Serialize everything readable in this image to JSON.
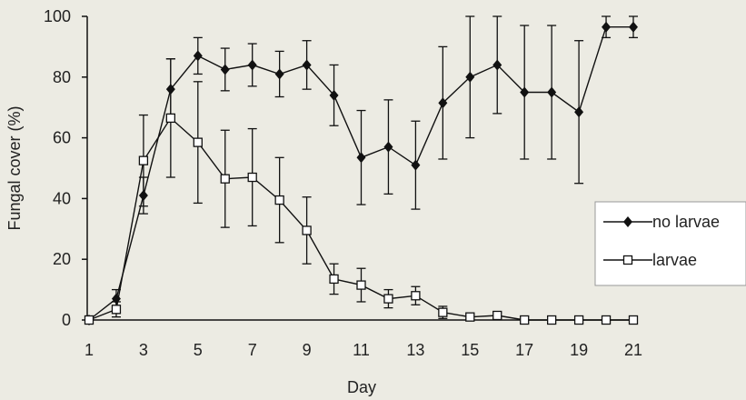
{
  "chart_data": {
    "type": "line",
    "xlabel": "Day",
    "ylabel": "Fungal cover (%)",
    "xlim": [
      1,
      21
    ],
    "ylim": [
      0,
      100
    ],
    "x_ticks": [
      1,
      3,
      5,
      7,
      9,
      11,
      13,
      15,
      17,
      19,
      21
    ],
    "y_ticks": [
      0,
      20,
      40,
      60,
      80,
      100
    ],
    "grid": false,
    "legend_position": "right",
    "series": [
      {
        "name": "no larvae",
        "marker": "filled-diamond",
        "color": "#111111",
        "points": [
          {
            "x": 1,
            "y": 0,
            "err": 0
          },
          {
            "x": 2,
            "y": 7,
            "err": 3
          },
          {
            "x": 3,
            "y": 41,
            "err": 6
          },
          {
            "x": 4,
            "y": 76,
            "err": 10
          },
          {
            "x": 5,
            "y": 87,
            "err": 6
          },
          {
            "x": 6,
            "y": 82.5,
            "err": 7
          },
          {
            "x": 7,
            "y": 84,
            "err": 7
          },
          {
            "x": 8,
            "y": 81,
            "err": 7.5
          },
          {
            "x": 9,
            "y": 84,
            "err": 8
          },
          {
            "x": 10,
            "y": 74,
            "err": 10
          },
          {
            "x": 11,
            "y": 53.5,
            "err": 15.5
          },
          {
            "x": 12,
            "y": 57,
            "err": 15.5
          },
          {
            "x": 13,
            "y": 51,
            "err": 14.5
          },
          {
            "x": 14,
            "y": 71.5,
            "err": 18.5
          },
          {
            "x": 15,
            "y": 80,
            "err": 20
          },
          {
            "x": 16,
            "y": 84,
            "err": 16
          },
          {
            "x": 17,
            "y": 75,
            "err": 22
          },
          {
            "x": 18,
            "y": 75,
            "err": 22
          },
          {
            "x": 19,
            "y": 68.5,
            "err": 23.5
          },
          {
            "x": 20,
            "y": 96.5,
            "err": 3.5
          },
          {
            "x": 21,
            "y": 96.5,
            "err": 3.5
          }
        ]
      },
      {
        "name": "larvae",
        "marker": "open-square",
        "color": "#111111",
        "points": [
          {
            "x": 1,
            "y": 0,
            "err": 0
          },
          {
            "x": 2,
            "y": 3.5,
            "err": 2.5
          },
          {
            "x": 3,
            "y": 52.5,
            "err": 15
          },
          {
            "x": 4,
            "y": 66.5,
            "err": 19.5
          },
          {
            "x": 5,
            "y": 58.5,
            "err": 20
          },
          {
            "x": 6,
            "y": 46.5,
            "err": 16
          },
          {
            "x": 7,
            "y": 47,
            "err": 16
          },
          {
            "x": 8,
            "y": 39.5,
            "err": 14
          },
          {
            "x": 9,
            "y": 29.5,
            "err": 11
          },
          {
            "x": 10,
            "y": 13.5,
            "err": 5
          },
          {
            "x": 11,
            "y": 11.5,
            "err": 5.5
          },
          {
            "x": 12,
            "y": 7,
            "err": 3
          },
          {
            "x": 13,
            "y": 8,
            "err": 3
          },
          {
            "x": 14,
            "y": 2.5,
            "err": 2
          },
          {
            "x": 15,
            "y": 1,
            "err": 0.8
          },
          {
            "x": 16,
            "y": 1.5,
            "err": 1
          },
          {
            "x": 17,
            "y": 0,
            "err": 0
          },
          {
            "x": 18,
            "y": 0,
            "err": 0
          },
          {
            "x": 19,
            "y": 0,
            "err": 0
          },
          {
            "x": 20,
            "y": 0,
            "err": 0
          },
          {
            "x": 21,
            "y": 0,
            "err": 0
          }
        ]
      }
    ]
  }
}
